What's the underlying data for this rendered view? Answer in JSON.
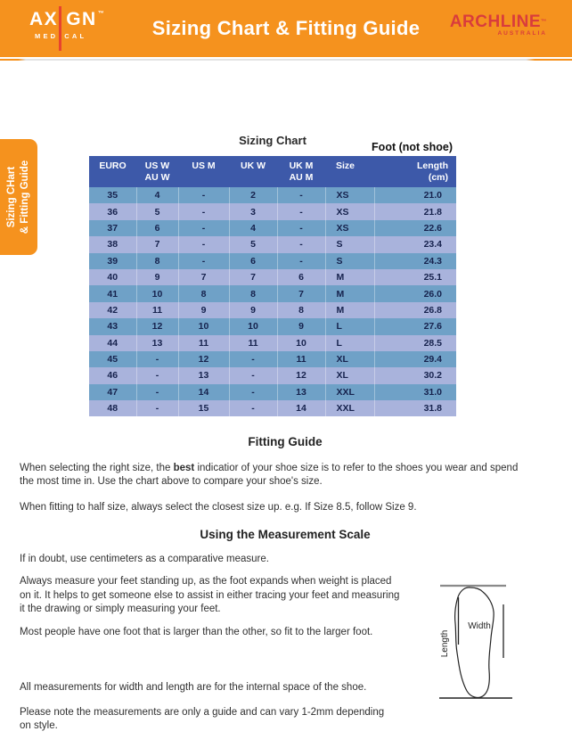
{
  "colors": {
    "orange": "#F5921E",
    "brand_red": "#E8432E",
    "partner_red": "#D93C3C",
    "table_header_blue": "#3D59A9",
    "row_blue": "#6FA1C7",
    "row_periwinkle": "#A9B3DC",
    "cell_text_navy": "#16224D"
  },
  "header": {
    "brand": {
      "name_left": "AX",
      "name_right": "GN",
      "tm": "™",
      "sub_left": "MED",
      "sub_right": "CAL"
    },
    "title": "Sizing Chart & Fitting Guide",
    "partner": {
      "name": "ARCHLINE",
      "tm": "™",
      "sub": "AUSTRALIA"
    }
  },
  "side_tab": {
    "text": "Sizing CHart\n& Fitting Guide"
  },
  "sizing_chart": {
    "title": "Sizing Chart",
    "foot_note": "Foot (not shoe)",
    "columns": [
      [
        "EURO"
      ],
      [
        "US W",
        "AU W"
      ],
      [
        "US M"
      ],
      [
        "UK W"
      ],
      [
        "UK M",
        "AU M"
      ],
      [
        "Size"
      ],
      [
        "Length",
        "(cm)"
      ]
    ],
    "rows": [
      [
        "35",
        "4",
        "-",
        "2",
        "-",
        "XS",
        "21.0"
      ],
      [
        "36",
        "5",
        "-",
        "3",
        "-",
        "XS",
        "21.8"
      ],
      [
        "37",
        "6",
        "-",
        "4",
        "-",
        "XS",
        "22.6"
      ],
      [
        "38",
        "7",
        "-",
        "5",
        "-",
        "S",
        "23.4"
      ],
      [
        "39",
        "8",
        "-",
        "6",
        "-",
        "S",
        "24.3"
      ],
      [
        "40",
        "9",
        "7",
        "7",
        "6",
        "M",
        "25.1"
      ],
      [
        "41",
        "10",
        "8",
        "8",
        "7",
        "M",
        "26.0"
      ],
      [
        "42",
        "11",
        "9",
        "9",
        "8",
        "M",
        "26.8"
      ],
      [
        "43",
        "12",
        "10",
        "10",
        "9",
        "L",
        "27.6"
      ],
      [
        "44",
        "13",
        "11",
        "11",
        "10",
        "L",
        "28.5"
      ],
      [
        "45",
        "-",
        "12",
        "-",
        "11",
        "XL",
        "29.4"
      ],
      [
        "46",
        "-",
        "13",
        "-",
        "12",
        "XL",
        "30.2"
      ],
      [
        "47",
        "-",
        "14",
        "-",
        "13",
        "XXL",
        "31.0"
      ],
      [
        "48",
        "-",
        "15",
        "-",
        "14",
        "XXL",
        "31.8"
      ]
    ]
  },
  "fitting_guide": {
    "heading": "Fitting Guide",
    "p1_pre": "When selecting the right size, the ",
    "p1_bold": "best",
    "p1_post": " indicatior of your shoe size is to refer to the shoes you wear and spend\nthe most time in. Use the chart above to compare your shoe's size.",
    "p2": "When fitting to half size, always select the closest size up. e.g. If Size 8.5, follow Size 9."
  },
  "measurement_scale": {
    "heading": "Using the Measurement Scale",
    "p1": "If in doubt, use centimeters as a comparative measure.",
    "p2": "Always measure your feet standing up, as the foot expands when weight is placed\non it. It helps to get someone else to assist in either tracing your feet and measuring\nit the drawing or simply measuring your feet.",
    "p3": "Most people have one foot that is larger than the other, so fit to the larger foot.",
    "p4": "All measurements for width and length are for the internal space of the shoe.",
    "p5": "Please note the measurements are only a guide and can vary 1-2mm depending\non style."
  },
  "diagram": {
    "width_label": "Width",
    "length_label": "Length"
  }
}
